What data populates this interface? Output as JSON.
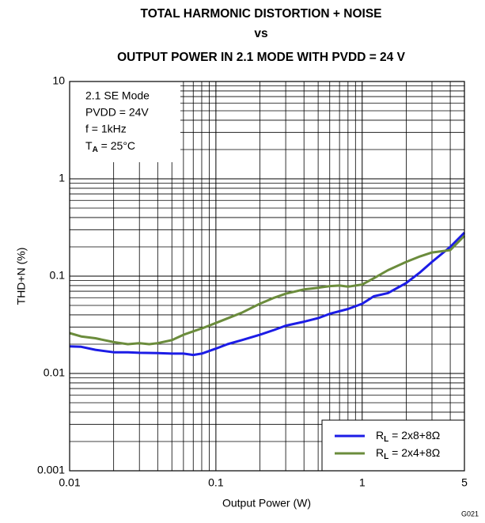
{
  "chart_data": {
    "type": "line",
    "title": [
      "TOTAL HARMONIC DISTORTION + NOISE",
      "vs",
      "OUTPUT POWER IN 2.1 MODE WITH PVDD = 24 V"
    ],
    "x_label": "Output Power (W)",
    "y_label": "THD+N (%)",
    "figure_id": "G021",
    "annotations": [
      "2.1 SE Mode",
      "PVDD = 24V",
      "f = 1kHz",
      "TA = 25°C"
    ],
    "x_log": true,
    "y_log": true,
    "grid": true,
    "legend_position": "lower right",
    "xlim": [
      0.01,
      5
    ],
    "ylim": [
      0.001,
      10
    ],
    "xticks": [
      0.01,
      0.1,
      1,
      5
    ],
    "yticks": [
      0.001,
      0.01,
      0.1,
      1,
      10
    ],
    "x_minor_ticks": [
      0.02,
      0.03,
      0.04,
      0.05,
      0.06,
      0.07,
      0.08,
      0.09,
      0.2,
      0.3,
      0.4,
      0.5,
      0.6,
      0.7,
      0.8,
      0.9,
      2,
      3,
      4
    ],
    "y_minor_ticks": [
      0.002,
      0.003,
      0.004,
      0.005,
      0.006,
      0.007,
      0.008,
      0.009,
      0.02,
      0.03,
      0.04,
      0.05,
      0.06,
      0.07,
      0.08,
      0.09,
      0.2,
      0.3,
      0.4,
      0.5,
      0.6,
      0.7,
      0.8,
      0.9,
      2,
      3,
      4,
      5,
      6,
      7,
      8,
      9
    ],
    "series": [
      {
        "name": "RL = 2x8+8Ω",
        "color": "#1c1ce6",
        "x": [
          0.01,
          0.012,
          0.015,
          0.02,
          0.025,
          0.03,
          0.04,
          0.05,
          0.06,
          0.07,
          0.08,
          0.1,
          0.12,
          0.15,
          0.2,
          0.25,
          0.3,
          0.4,
          0.5,
          0.6,
          0.8,
          1,
          1.2,
          1.5,
          2,
          2.5,
          3,
          4,
          5
        ],
        "values": [
          0.019,
          0.0188,
          0.0175,
          0.0165,
          0.0165,
          0.0163,
          0.0162,
          0.016,
          0.016,
          0.0155,
          0.016,
          0.018,
          0.02,
          0.022,
          0.025,
          0.028,
          0.031,
          0.034,
          0.037,
          0.041,
          0.046,
          0.052,
          0.062,
          0.067,
          0.085,
          0.11,
          0.14,
          0.2,
          0.28
        ]
      },
      {
        "name": "RL = 2x4+8Ω",
        "color": "#6b8c3c",
        "x": [
          0.01,
          0.012,
          0.015,
          0.02,
          0.025,
          0.03,
          0.035,
          0.04,
          0.05,
          0.06,
          0.08,
          0.1,
          0.15,
          0.2,
          0.25,
          0.3,
          0.4,
          0.5,
          0.6,
          0.7,
          0.8,
          1,
          1.2,
          1.5,
          2,
          2.5,
          3,
          4,
          5
        ],
        "values": [
          0.026,
          0.024,
          0.023,
          0.021,
          0.02,
          0.0205,
          0.02,
          0.0205,
          0.022,
          0.025,
          0.029,
          0.033,
          0.042,
          0.052,
          0.06,
          0.066,
          0.073,
          0.076,
          0.079,
          0.08,
          0.078,
          0.082,
          0.095,
          0.115,
          0.14,
          0.16,
          0.175,
          0.185,
          0.26
        ]
      }
    ]
  }
}
